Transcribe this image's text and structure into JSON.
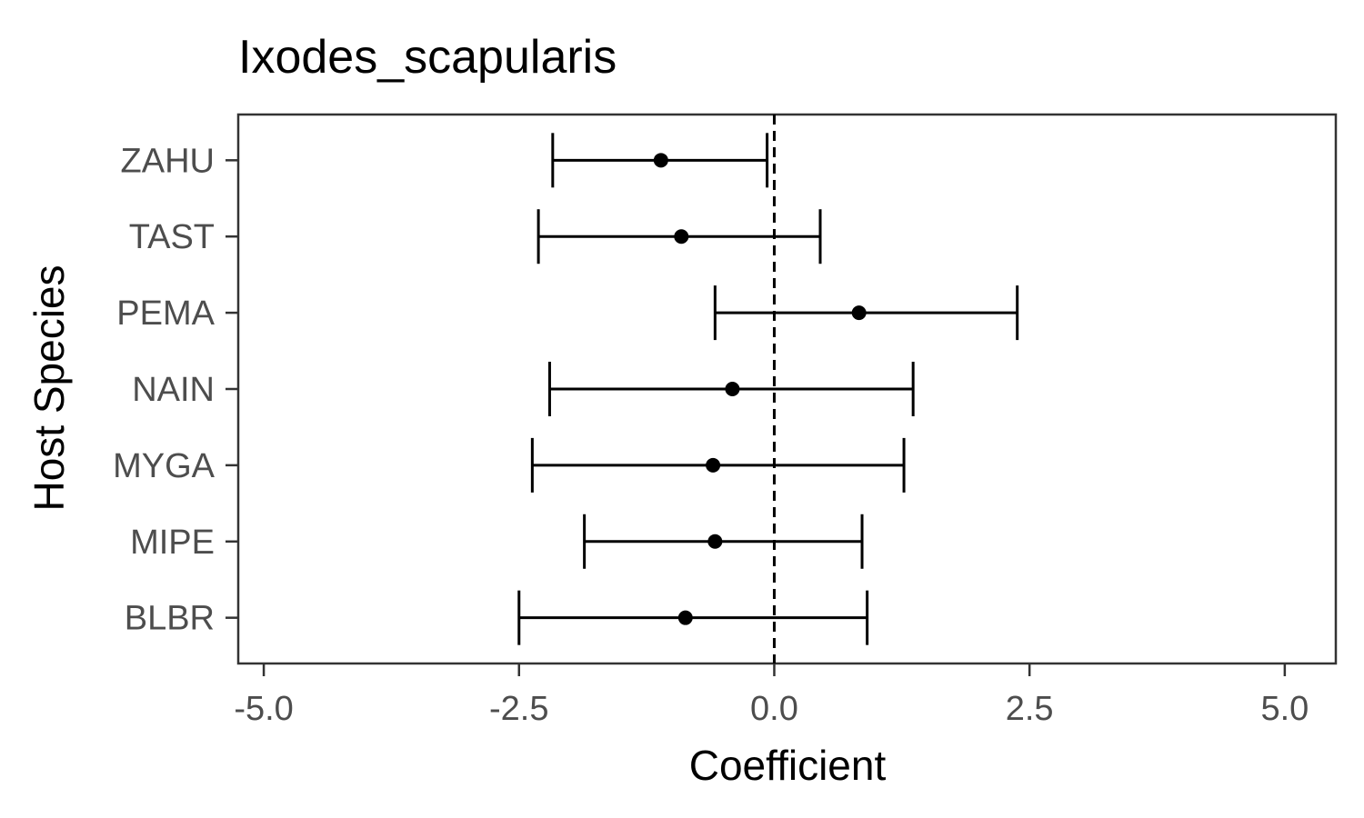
{
  "chart_data": {
    "type": "scatter",
    "subtype": "point-range",
    "title": "Ixodes_scapularis",
    "xlabel": "Coefficient",
    "ylabel": "Host Species",
    "xlim": [
      -5.25,
      5.5
    ],
    "xticks": [
      -5.0,
      -2.5,
      0.0,
      2.5,
      5.0
    ],
    "xtick_labels": [
      "-5.0",
      "-2.5",
      "0.0",
      "2.5",
      "5.0"
    ],
    "reference_line": 0.0,
    "grid": false,
    "legend": "none",
    "categories": [
      "ZAHU",
      "TAST",
      "PEMA",
      "NAIN",
      "MYGA",
      "MIPE",
      "BLBR"
    ],
    "estimates": [
      -1.11,
      -0.91,
      0.83,
      -0.41,
      -0.6,
      -0.58,
      -0.87
    ],
    "lower": [
      -2.17,
      -2.31,
      -0.58,
      -2.2,
      -2.37,
      -1.86,
      -2.5
    ],
    "upper": [
      -0.07,
      0.45,
      2.38,
      1.36,
      1.27,
      0.86,
      0.91
    ]
  },
  "colors": {
    "point": "#000000",
    "errorbar": "#000000",
    "panel_border": "#333333",
    "tick_label": "#4d4d4d",
    "background": "#ffffff"
  }
}
